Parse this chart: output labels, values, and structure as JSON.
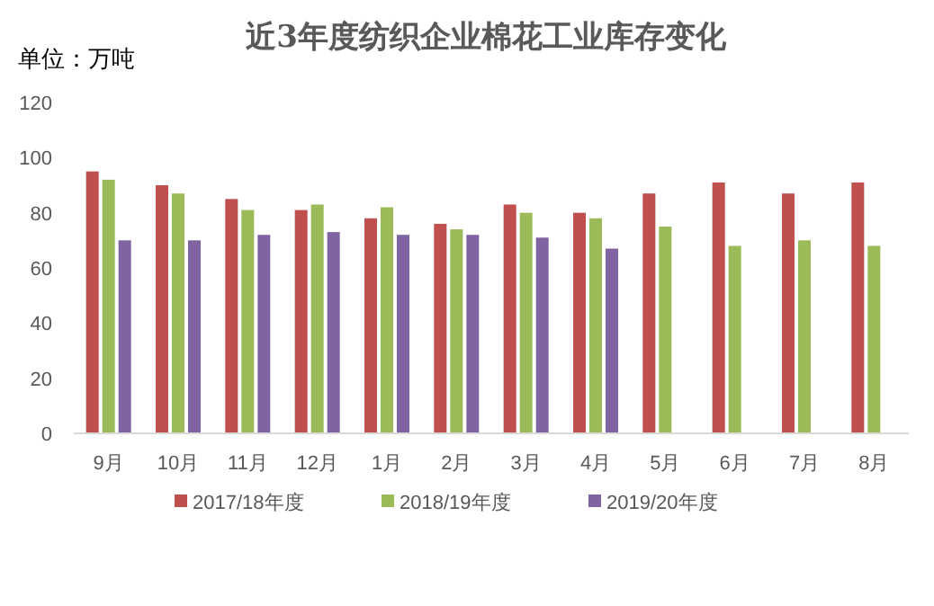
{
  "chart_data": {
    "type": "bar",
    "title": "近3年度纺织企业棉花工业库存变化",
    "ylabel": "单位：万吨",
    "categories": [
      "9月",
      "10月",
      "11月",
      "12月",
      "1月",
      "2月",
      "3月",
      "4月",
      "5月",
      "6月",
      "7月",
      "8月"
    ],
    "series": [
      {
        "name": "2017/18年度",
        "color": "#c0504d",
        "values": [
          95,
          90,
          85,
          81,
          78,
          76,
          83,
          80,
          87,
          91,
          87,
          91
        ]
      },
      {
        "name": "2018/19年度",
        "color": "#9bbb59",
        "values": [
          92,
          87,
          81,
          83,
          82,
          74,
          80,
          78,
          75,
          68,
          70,
          68
        ]
      },
      {
        "name": "2019/20年度",
        "color": "#8064a2",
        "values": [
          70,
          70,
          72,
          73,
          72,
          72,
          71,
          67,
          null,
          null,
          null,
          null
        ]
      }
    ],
    "ylim": [
      0,
      120
    ],
    "yticks": [
      0,
      20,
      40,
      60,
      80,
      100,
      120
    ],
    "grid": false,
    "legend": "bottom"
  }
}
